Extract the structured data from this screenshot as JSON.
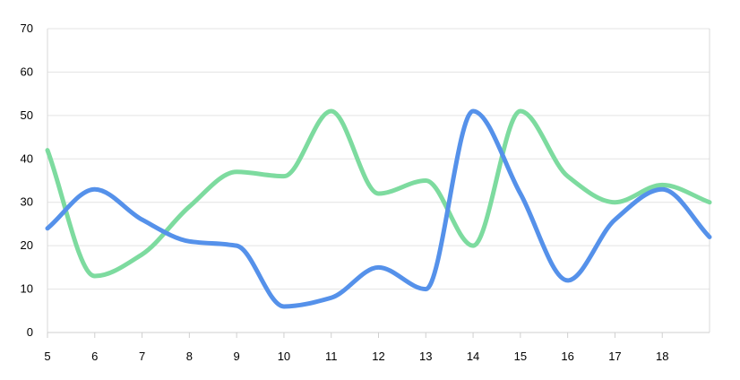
{
  "chart_data": {
    "type": "line",
    "title": "",
    "xlabel": "",
    "ylabel": "",
    "x": [
      5,
      6,
      7,
      8,
      9,
      10,
      11,
      12,
      13,
      14,
      15,
      16,
      17,
      18,
      19
    ],
    "x_tick_labels": [
      "5",
      "6",
      "7",
      "8",
      "9",
      "10",
      "11",
      "12",
      "13",
      "14",
      "15",
      "16",
      "17",
      "18"
    ],
    "y_ticks": [
      0,
      10,
      20,
      30,
      40,
      50,
      60,
      70
    ],
    "y_tick_labels": [
      "0",
      "10",
      "20",
      "30",
      "40",
      "50",
      "60",
      "70"
    ],
    "ylim": [
      0,
      70
    ],
    "xlim": [
      5,
      19
    ],
    "grid": "horizontal",
    "series": [
      {
        "color": "#5591ea",
        "values": [
          24,
          33,
          26,
          21,
          20,
          6,
          8,
          15,
          10,
          51,
          32,
          12,
          26,
          33,
          22
        ]
      },
      {
        "color": "#7ddb9f",
        "values": [
          42,
          13,
          18,
          29,
          37,
          36,
          51,
          32,
          35,
          20,
          51,
          36,
          30,
          34,
          30
        ]
      }
    ]
  }
}
